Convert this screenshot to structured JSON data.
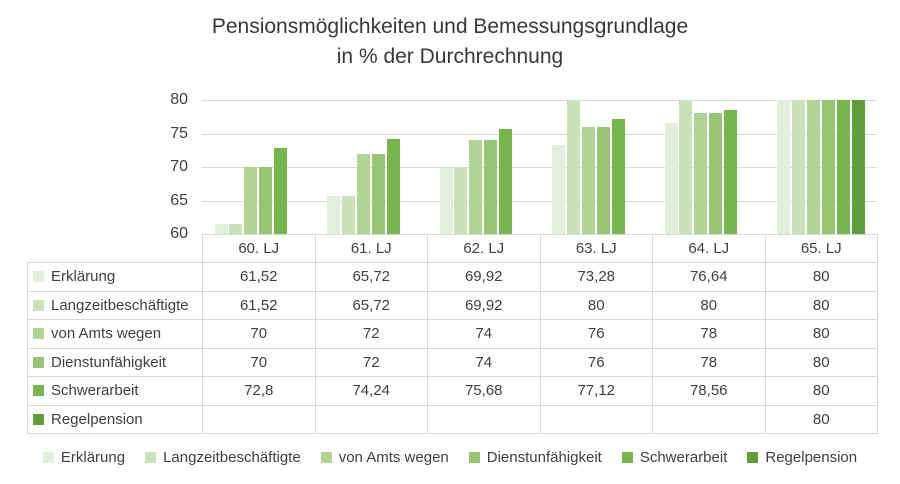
{
  "title": {
    "line1": "Pensionsmöglichkeiten und Bemessungsgrundlage",
    "line2": "in % der Durchrechnung"
  },
  "colors": {
    "grid": "#d9d9d9",
    "table_border": "#d9d9d9",
    "text": "#3f3f3f",
    "series": [
      "#e2efda",
      "#cbe2b8",
      "#b0d494",
      "#96c674",
      "#77b64e",
      "#5f9e3a"
    ]
  },
  "chart_data": {
    "type": "bar",
    "title": "Pensionsmöglichkeiten und Bemessungsgrundlage in % der Durchrechnung",
    "categories": [
      "60. LJ",
      "61. LJ",
      "62. LJ",
      "63. LJ",
      "64. LJ",
      "65. LJ"
    ],
    "series": [
      {
        "name": "Erklärung",
        "color": "#e2efda",
        "values": [
          61.52,
          65.72,
          69.92,
          73.28,
          76.64,
          80
        ]
      },
      {
        "name": "Langzeitbeschäftigte",
        "color": "#cbe2b8",
        "values": [
          61.52,
          65.72,
          69.92,
          80,
          80,
          80
        ]
      },
      {
        "name": "von Amts wegen",
        "color": "#b0d494",
        "values": [
          70,
          72,
          74,
          76,
          78,
          80
        ]
      },
      {
        "name": "Dienstunfähigkeit",
        "color": "#96c674",
        "values": [
          70,
          72,
          74,
          76,
          78,
          80
        ]
      },
      {
        "name": "Schwerarbeit",
        "color": "#77b64e",
        "values": [
          72.8,
          74.24,
          75.68,
          77.12,
          78.56,
          80
        ]
      },
      {
        "name": "Regelpension",
        "color": "#5f9e3a",
        "values": [
          null,
          null,
          null,
          null,
          null,
          80
        ]
      }
    ],
    "xlabel": "",
    "ylabel": "",
    "ylim": [
      60,
      80
    ],
    "yticks": [
      60,
      65,
      70,
      75,
      80
    ],
    "grid": true,
    "legend_position": "bottom",
    "data_table_shown": true
  },
  "table": {
    "header": [
      "",
      "60. LJ",
      "61. LJ",
      "62. LJ",
      "63. LJ",
      "64. LJ",
      "65. LJ"
    ],
    "rows": [
      {
        "label": "Erklärung",
        "cells": [
          "61,52",
          "65,72",
          "69,92",
          "73,28",
          "76,64",
          "80"
        ]
      },
      {
        "label": "Langzeitbeschäftigte",
        "cells": [
          "61,52",
          "65,72",
          "69,92",
          "80",
          "80",
          "80"
        ]
      },
      {
        "label": "von Amts wegen",
        "cells": [
          "70",
          "72",
          "74",
          "76",
          "78",
          "80"
        ]
      },
      {
        "label": "Dienstunfähigkeit",
        "cells": [
          "70",
          "72",
          "74",
          "76",
          "78",
          "80"
        ]
      },
      {
        "label": "Schwerarbeit",
        "cells": [
          "72,8",
          "74,24",
          "75,68",
          "77,12",
          "78,56",
          "80"
        ]
      },
      {
        "label": "Regelpension",
        "cells": [
          "",
          "",
          "",
          "",
          "",
          "80"
        ]
      }
    ]
  },
  "legend": {
    "items": [
      "Erklärung",
      "Langzeitbeschäftigte",
      "von Amts wegen",
      "Dienstunfähigkeit",
      "Schwerarbeit",
      "Regelpension"
    ]
  }
}
